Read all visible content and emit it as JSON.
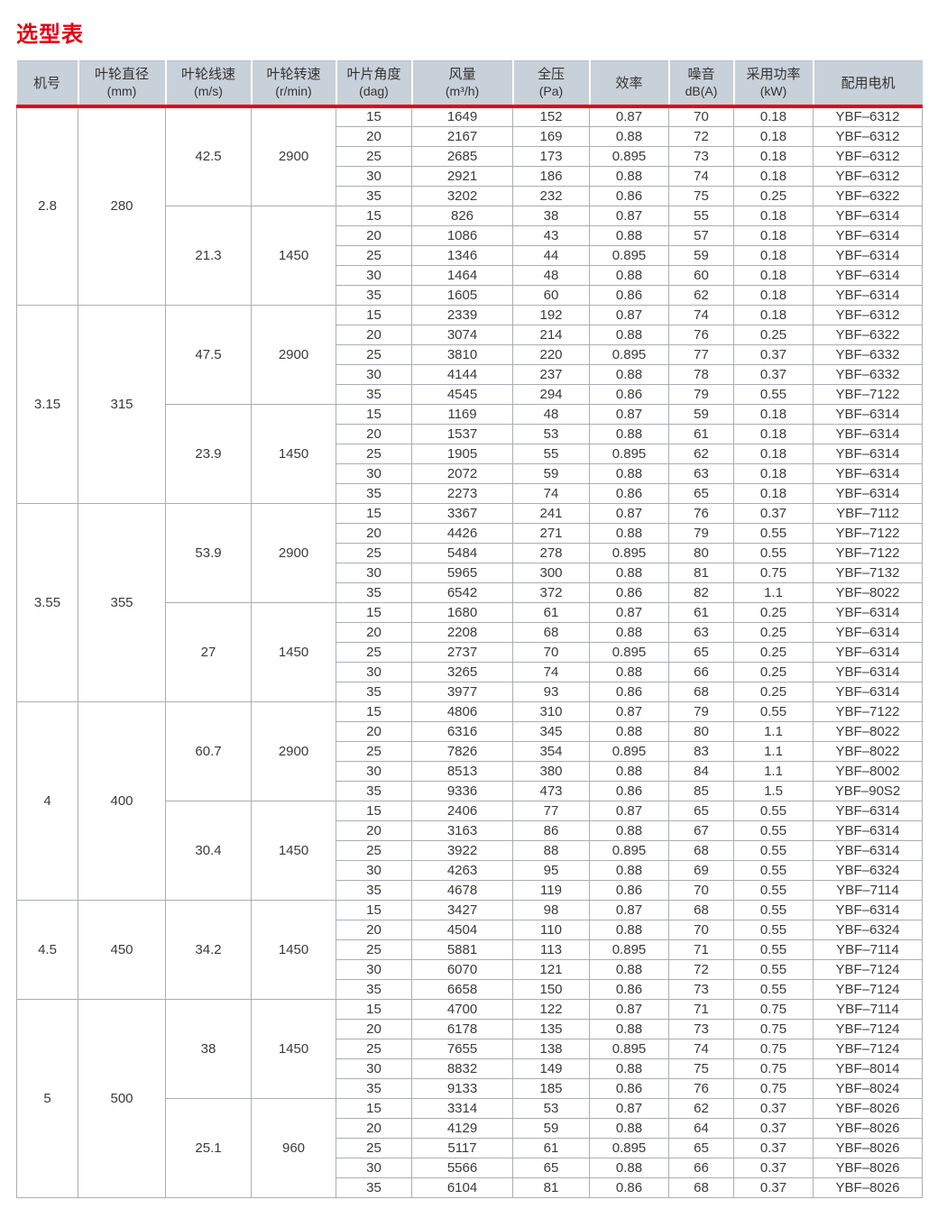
{
  "page": {
    "title": "选型表"
  },
  "colors": {
    "accent_red": "#e60012",
    "header_bg": "#c8d0d9",
    "grid_border": "#a9aeb4",
    "text": "#333333"
  },
  "table": {
    "columns": [
      {
        "label": "机号",
        "unit": ""
      },
      {
        "label": "叶轮直径",
        "unit": "(mm)"
      },
      {
        "label": "叶轮线速",
        "unit": "(m/s)"
      },
      {
        "label": "叶轮转速",
        "unit": "(r/min)"
      },
      {
        "label": "叶片角度",
        "unit": "(dag)"
      },
      {
        "label": "风量",
        "unit": "(m³/h)"
      },
      {
        "label": "全压",
        "unit": "(Pa)"
      },
      {
        "label": "效率",
        "unit": ""
      },
      {
        "label": "噪音",
        "unit": "dB(A)"
      },
      {
        "label": "采用功率",
        "unit": "(kW)"
      },
      {
        "label": "配用电机",
        "unit": ""
      }
    ],
    "groups": [
      {
        "model": "2.8",
        "diameter": "280",
        "subgroups": [
          {
            "line_speed": "42.5",
            "rpm": "2900",
            "rows": [
              [
                "15",
                "1649",
                "152",
                "0.87",
                "70",
                "0.18",
                "YBF–6312"
              ],
              [
                "20",
                "2167",
                "169",
                "0.88",
                "72",
                "0.18",
                "YBF–6312"
              ],
              [
                "25",
                "2685",
                "173",
                "0.895",
                "73",
                "0.18",
                "YBF–6312"
              ],
              [
                "30",
                "2921",
                "186",
                "0.88",
                "74",
                "0.18",
                "YBF–6312"
              ],
              [
                "35",
                "3202",
                "232",
                "0.86",
                "75",
                "0.25",
                "YBF–6322"
              ]
            ]
          },
          {
            "line_speed": "21.3",
            "rpm": "1450",
            "rows": [
              [
                "15",
                "826",
                "38",
                "0.87",
                "55",
                "0.18",
                "YBF–6314"
              ],
              [
                "20",
                "1086",
                "43",
                "0.88",
                "57",
                "0.18",
                "YBF–6314"
              ],
              [
                "25",
                "1346",
                "44",
                "0.895",
                "59",
                "0.18",
                "YBF–6314"
              ],
              [
                "30",
                "1464",
                "48",
                "0.88",
                "60",
                "0.18",
                "YBF–6314"
              ],
              [
                "35",
                "1605",
                "60",
                "0.86",
                "62",
                "0.18",
                "YBF–6314"
              ]
            ]
          }
        ]
      },
      {
        "model": "3.15",
        "diameter": "315",
        "subgroups": [
          {
            "line_speed": "47.5",
            "rpm": "2900",
            "rows": [
              [
                "15",
                "2339",
                "192",
                "0.87",
                "74",
                "0.18",
                "YBF–6312"
              ],
              [
                "20",
                "3074",
                "214",
                "0.88",
                "76",
                "0.25",
                "YBF–6322"
              ],
              [
                "25",
                "3810",
                "220",
                "0.895",
                "77",
                "0.37",
                "YBF–6332"
              ],
              [
                "30",
                "4144",
                "237",
                "0.88",
                "78",
                "0.37",
                "YBF–6332"
              ],
              [
                "35",
                "4545",
                "294",
                "0.86",
                "79",
                "0.55",
                "YBF–7122"
              ]
            ]
          },
          {
            "line_speed": "23.9",
            "rpm": "1450",
            "rows": [
              [
                "15",
                "1169",
                "48",
                "0.87",
                "59",
                "0.18",
                "YBF–6314"
              ],
              [
                "20",
                "1537",
                "53",
                "0.88",
                "61",
                "0.18",
                "YBF–6314"
              ],
              [
                "25",
                "1905",
                "55",
                "0.895",
                "62",
                "0.18",
                "YBF–6314"
              ],
              [
                "30",
                "2072",
                "59",
                "0.88",
                "63",
                "0.18",
                "YBF–6314"
              ],
              [
                "35",
                "2273",
                "74",
                "0.86",
                "65",
                "0.18",
                "YBF–6314"
              ]
            ]
          }
        ]
      },
      {
        "model": "3.55",
        "diameter": "355",
        "subgroups": [
          {
            "line_speed": "53.9",
            "rpm": "2900",
            "rows": [
              [
                "15",
                "3367",
                "241",
                "0.87",
                "76",
                "0.37",
                "YBF–7112"
              ],
              [
                "20",
                "4426",
                "271",
                "0.88",
                "79",
                "0.55",
                "YBF–7122"
              ],
              [
                "25",
                "5484",
                "278",
                "0.895",
                "80",
                "0.55",
                "YBF–7122"
              ],
              [
                "30",
                "5965",
                "300",
                "0.88",
                "81",
                "0.75",
                "YBF–7132"
              ],
              [
                "35",
                "6542",
                "372",
                "0.86",
                "82",
                "1.1",
                "YBF–8022"
              ]
            ]
          },
          {
            "line_speed": "27",
            "rpm": "1450",
            "rows": [
              [
                "15",
                "1680",
                "61",
                "0.87",
                "61",
                "0.25",
                "YBF–6314"
              ],
              [
                "20",
                "2208",
                "68",
                "0.88",
                "63",
                "0.25",
                "YBF–6314"
              ],
              [
                "25",
                "2737",
                "70",
                "0.895",
                "65",
                "0.25",
                "YBF–6314"
              ],
              [
                "30",
                "3265",
                "74",
                "0.88",
                "66",
                "0.25",
                "YBF–6314"
              ],
              [
                "35",
                "3977",
                "93",
                "0.86",
                "68",
                "0.25",
                "YBF–6314"
              ]
            ]
          }
        ]
      },
      {
        "model": "4",
        "diameter": "400",
        "subgroups": [
          {
            "line_speed": "60.7",
            "rpm": "2900",
            "rows": [
              [
                "15",
                "4806",
                "310",
                "0.87",
                "79",
                "0.55",
                "YBF–7122"
              ],
              [
                "20",
                "6316",
                "345",
                "0.88",
                "80",
                "1.1",
                "YBF–8022"
              ],
              [
                "25",
                "7826",
                "354",
                "0.895",
                "83",
                "1.1",
                "YBF–8022"
              ],
              [
                "30",
                "8513",
                "380",
                "0.88",
                "84",
                "1.1",
                "YBF–8002"
              ],
              [
                "35",
                "9336",
                "473",
                "0.86",
                "85",
                "1.5",
                "YBF–90S2"
              ]
            ]
          },
          {
            "line_speed": "30.4",
            "rpm": "1450",
            "rows": [
              [
                "15",
                "2406",
                "77",
                "0.87",
                "65",
                "0.55",
                "YBF–6314"
              ],
              [
                "20",
                "3163",
                "86",
                "0.88",
                "67",
                "0.55",
                "YBF–6314"
              ],
              [
                "25",
                "3922",
                "88",
                "0.895",
                "68",
                "0.55",
                "YBF–6314"
              ],
              [
                "30",
                "4263",
                "95",
                "0.88",
                "69",
                "0.55",
                "YBF–6324"
              ],
              [
                "35",
                "4678",
                "119",
                "0.86",
                "70",
                "0.55",
                "YBF–7114"
              ]
            ]
          }
        ]
      },
      {
        "model": "4.5",
        "diameter": "450",
        "subgroups": [
          {
            "line_speed": "34.2",
            "rpm": "1450",
            "rows": [
              [
                "15",
                "3427",
                "98",
                "0.87",
                "68",
                "0.55",
                "YBF–6314"
              ],
              [
                "20",
                "4504",
                "110",
                "0.88",
                "70",
                "0.55",
                "YBF–6324"
              ],
              [
                "25",
                "5881",
                "113",
                "0.895",
                "71",
                "0.55",
                "YBF–7114"
              ],
              [
                "30",
                "6070",
                "121",
                "0.88",
                "72",
                "0.55",
                "YBF–7124"
              ],
              [
                "35",
                "6658",
                "150",
                "0.86",
                "73",
                "0.55",
                "YBF–7124"
              ]
            ]
          }
        ]
      },
      {
        "model": "5",
        "diameter": "500",
        "subgroups": [
          {
            "line_speed": "38",
            "rpm": "1450",
            "rows": [
              [
                "15",
                "4700",
                "122",
                "0.87",
                "71",
                "0.75",
                "YBF–7114"
              ],
              [
                "20",
                "6178",
                "135",
                "0.88",
                "73",
                "0.75",
                "YBF–7124"
              ],
              [
                "25",
                "7655",
                "138",
                "0.895",
                "74",
                "0.75",
                "YBF–7124"
              ],
              [
                "30",
                "8832",
                "149",
                "0.88",
                "75",
                "0.75",
                "YBF–8014"
              ],
              [
                "35",
                "9133",
                "185",
                "0.86",
                "76",
                "0.75",
                "YBF–8024"
              ]
            ]
          },
          {
            "line_speed": "25.1",
            "rpm": "960",
            "rows": [
              [
                "15",
                "3314",
                "53",
                "0.87",
                "62",
                "0.37",
                "YBF–8026"
              ],
              [
                "20",
                "4129",
                "59",
                "0.88",
                "64",
                "0.37",
                "YBF–8026"
              ],
              [
                "25",
                "5117",
                "61",
                "0.895",
                "65",
                "0.37",
                "YBF–8026"
              ],
              [
                "30",
                "5566",
                "65",
                "0.88",
                "66",
                "0.37",
                "YBF–8026"
              ],
              [
                "35",
                "6104",
                "81",
                "0.86",
                "68",
                "0.37",
                "YBF–8026"
              ]
            ]
          }
        ]
      }
    ]
  }
}
